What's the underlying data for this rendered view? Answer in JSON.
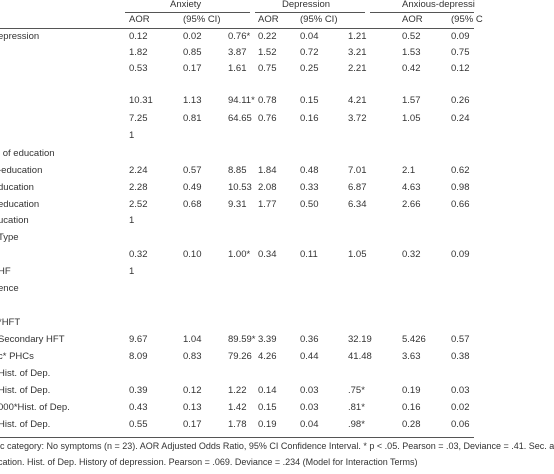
{
  "header": {
    "groups": [
      "Anxiety",
      "Depression",
      "Anxious-depressi"
    ],
    "columns": [
      "AOR",
      "(95% CI)",
      "AOR",
      "(95% CI)",
      "AOR",
      "(95% C"
    ]
  },
  "table": {
    "rows": [
      [
        "epression",
        "0.12",
        "0.02",
        "0.76*",
        "0.22",
        "0.04",
        "1.21",
        "0.52",
        "0.09"
      ],
      [
        null,
        "1.82",
        "0.85",
        "3.87",
        "1.52",
        "0.72",
        "3.21",
        "1.53",
        "0.75"
      ],
      [
        null,
        "0.53",
        "0.17",
        "1.61",
        "0.75",
        "0.25",
        "2.21",
        "0.42",
        "0.12"
      ],
      [
        null,
        "10.31",
        "1.13",
        "94.11*",
        "0.78",
        "0.15",
        "4.21",
        "1.57",
        "0.26"
      ],
      [
        null,
        "7.25",
        "0.81",
        "64.65",
        "0.76",
        "0.16",
        "3.72",
        "1.05",
        "0.24"
      ],
      [
        null,
        "1",
        null,
        null,
        null,
        null,
        null,
        null,
        null
      ],
      [
        "l of education",
        null,
        null,
        null,
        null,
        null,
        null,
        null,
        null
      ],
      [
        "-education",
        "2.24",
        "0.57",
        "8.85",
        "1.84",
        "0.48",
        "7.01",
        "2.1",
        "0.62"
      ],
      [
        "ducation",
        "2.28",
        "0.49",
        "10.53",
        "2.08",
        "0.33",
        "6.87",
        "4.63",
        "0.98"
      ],
      [
        "education",
        "2.52",
        "0.68",
        "9.31",
        "1.77",
        "0.50",
        "6.34",
        "2.66",
        "0.66"
      ],
      [
        "ucation",
        "1",
        null,
        null,
        null,
        null,
        null,
        null,
        null
      ],
      [
        "Type",
        null,
        null,
        null,
        null,
        null,
        null,
        null,
        null
      ],
      [
        null,
        "0.32",
        "0.10",
        "1.00*",
        "0.34",
        "0.11",
        "1.05",
        "0.32",
        "0.09"
      ],
      [
        "HF",
        "1",
        null,
        null,
        null,
        null,
        null,
        null,
        null
      ],
      [
        "ence",
        null,
        null,
        null,
        null,
        null,
        null,
        null,
        null
      ],
      [
        "*HFT",
        null,
        null,
        null,
        null,
        null,
        null,
        null,
        null
      ],
      [
        "Secondary HFT",
        "9.67",
        "1.04",
        "89.59*",
        "3.39",
        "0.36",
        "32.19",
        "5.426",
        "0.57"
      ],
      [
        "c* PHCs",
        "8.09",
        "0.83",
        "79.26",
        "4.26",
        "0.44",
        "41.48",
        "3.63",
        "0.38"
      ],
      [
        "Hist. of Dep.",
        null,
        null,
        null,
        null,
        null,
        null,
        null,
        null
      ],
      [
        "Hist. of Dep.",
        "0.39",
        "0.12",
        "1.22",
        "0.14",
        "0.03",
        ".75*",
        "0.19",
        "0.03"
      ],
      [
        "000*Hist. of Dep.",
        "0.43",
        "0.13",
        "1.42",
        "0.15",
        "0.03",
        ".81*",
        "0.16",
        "0.02"
      ],
      [
        "Hist. of Dep.",
        "0.55",
        "0.17",
        "1.78",
        "0.19",
        "0.04",
        ".98*",
        "0.28",
        "0.06"
      ]
    ]
  },
  "footnotes": [
    "ic category: No symptoms (n = 23). AOR Adjusted Odds Ratio, 95% CI Confidence Interval. * p < .05. Pearson = .03, Deviance = .41. Sec. a",
    "cation. Hist. of Dep. History of depression. Pearson = .069. Deviance = .234 (Model for Interaction Terms)"
  ]
}
